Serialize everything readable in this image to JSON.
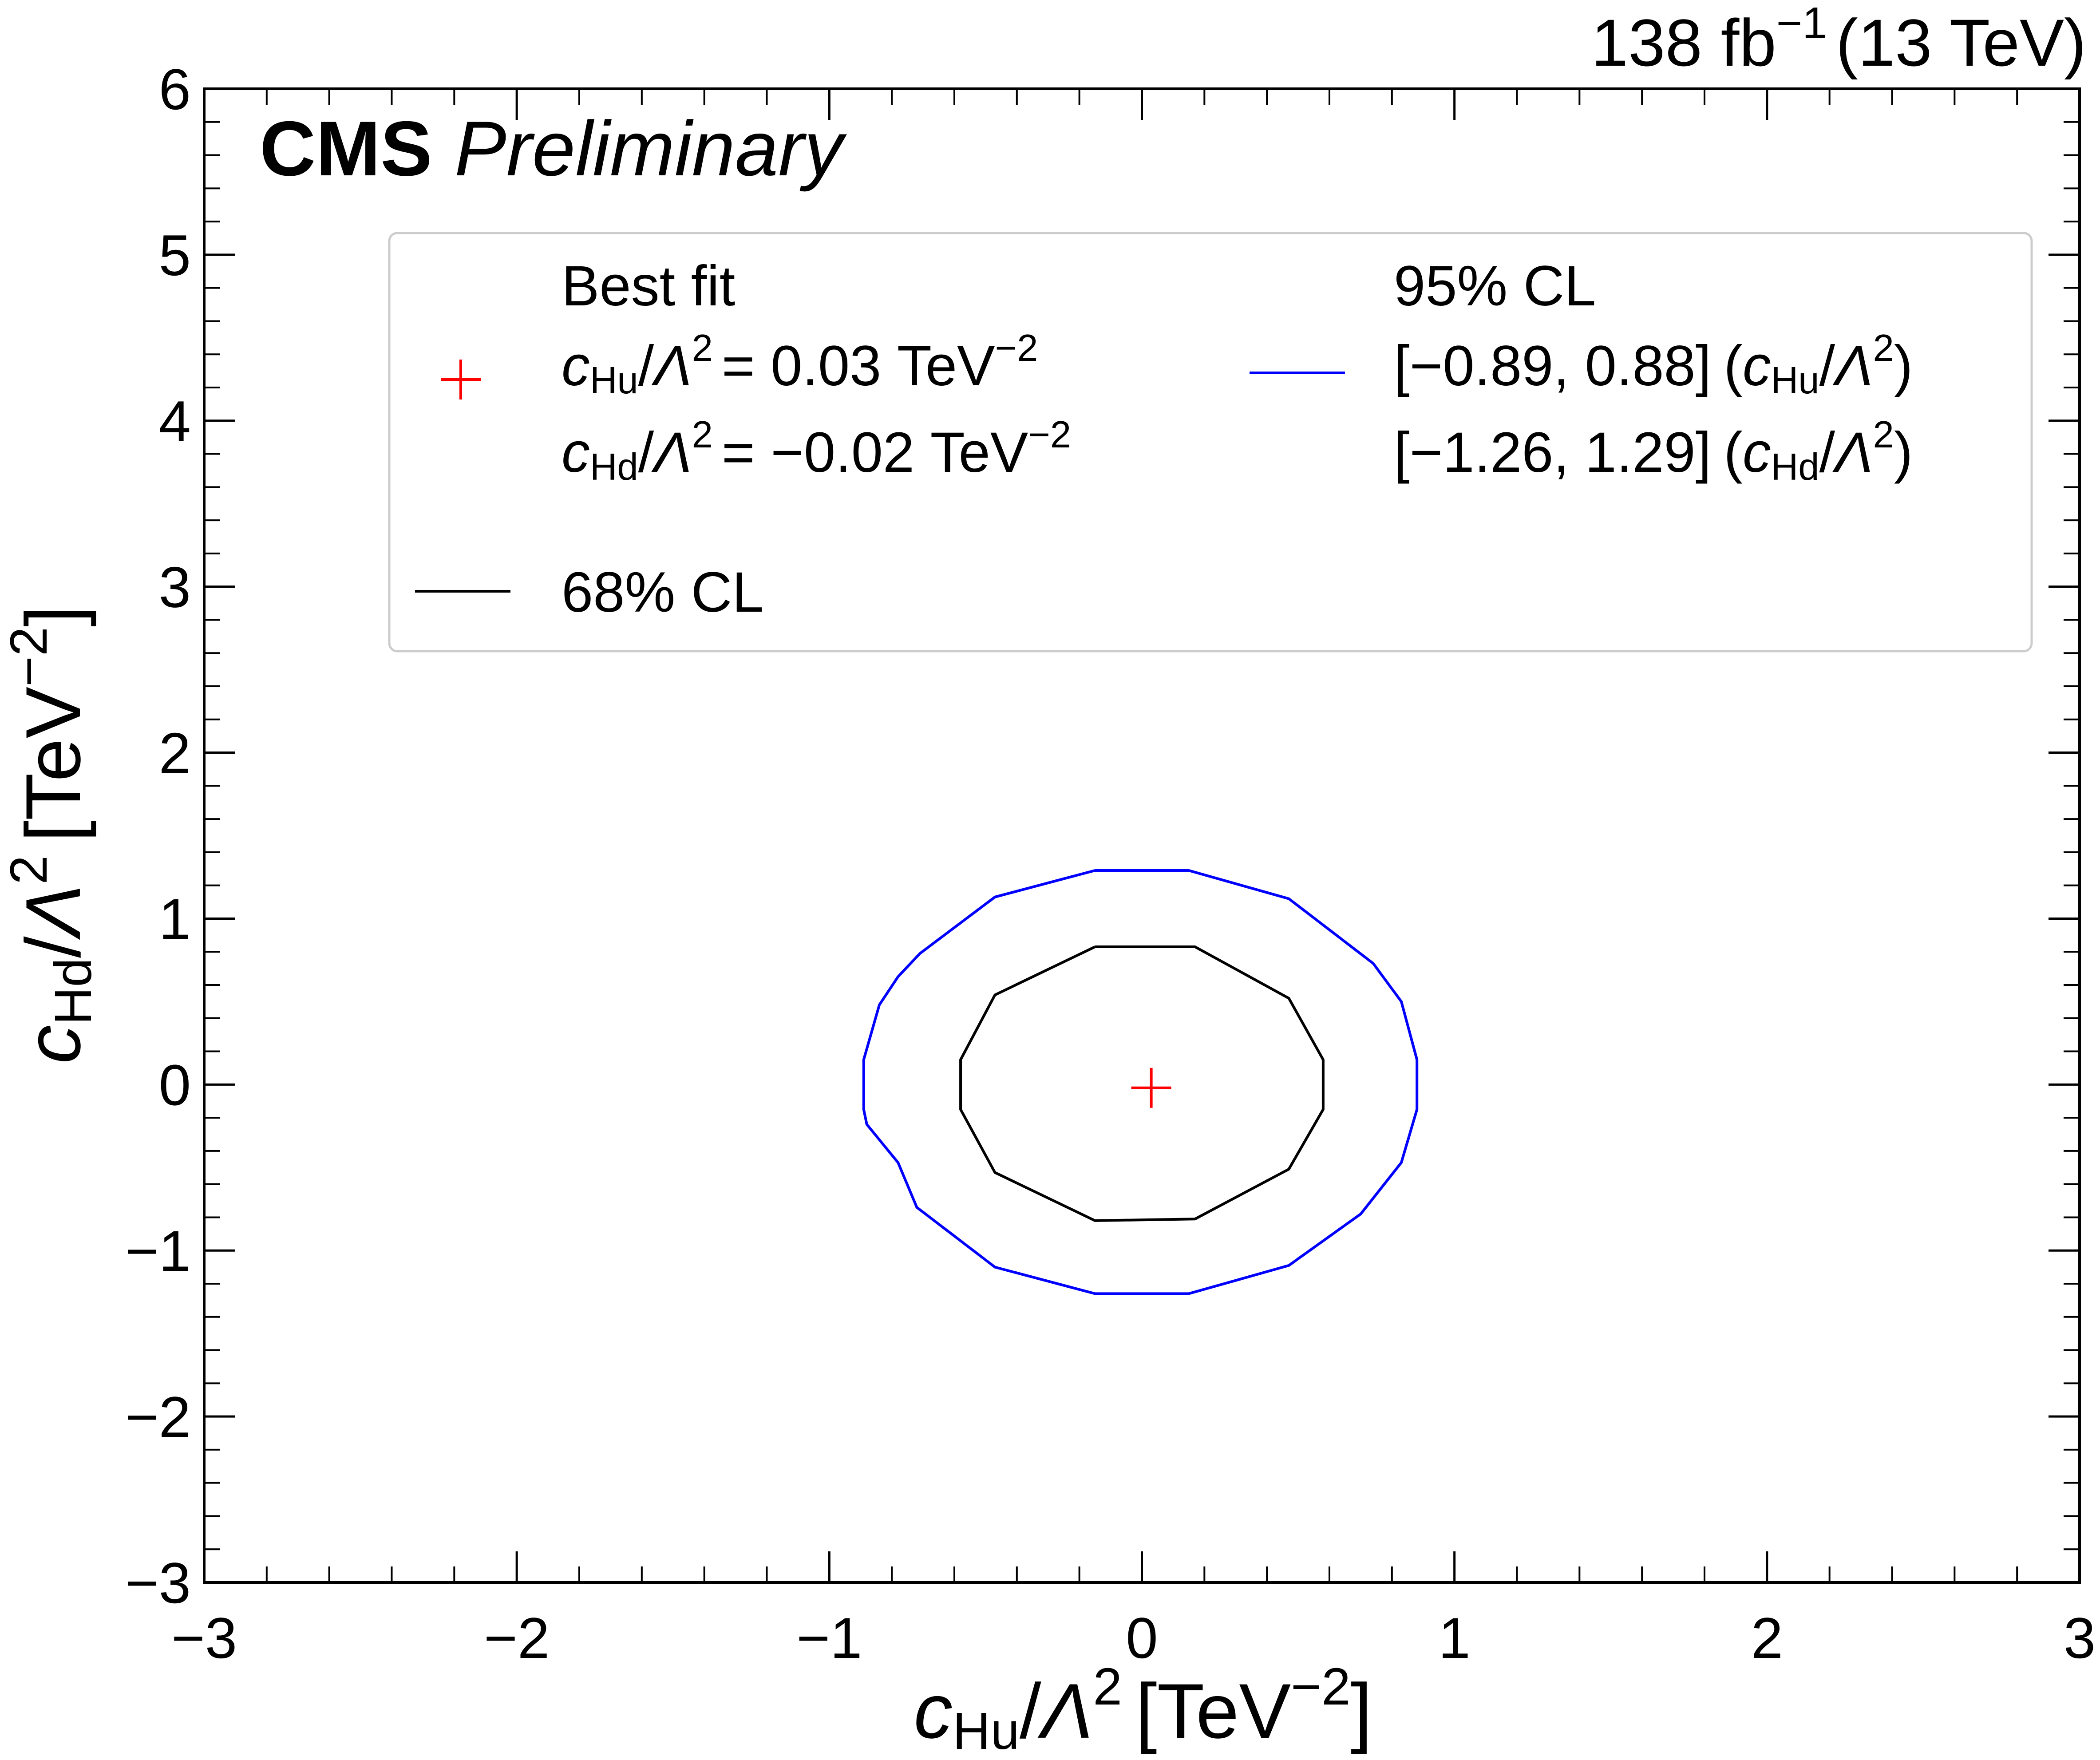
{
  "header": {
    "experiment": "CMS",
    "status": "Preliminary",
    "lumi_value": "138 fb",
    "lumi_exp": "−1",
    "energy": "(13 TeV)"
  },
  "legend": {
    "best_fit_title": "Best fit",
    "best_fit_hu_sym": "c",
    "best_fit_hu_sub": "Hu",
    "best_fit_hu_value": "= 0.03 TeV",
    "best_fit_hd_sym": "c",
    "best_fit_hd_sub": "Hd",
    "best_fit_hd_value": "= −0.02 TeV",
    "exp_neg2": "−2",
    "lambda": "Λ",
    "sq": "2",
    "cl95_title": "95% CL",
    "cl95_hu_interval": "[−0.89, 0.88]",
    "cl95_hd_interval": "[−1.26, 1.29]",
    "cl68_title": "68% CL"
  },
  "axes": {
    "x_sym": "c",
    "x_sub": "Hu",
    "y_sym": "c",
    "y_sub": "Hd",
    "unit_open": "[TeV",
    "unit_exp": "−2",
    "unit_close": "]"
  },
  "colors": {
    "cl95": "#0000ff",
    "cl68": "#000000",
    "best_fit": "#ff0000"
  },
  "chart_data": {
    "type": "contour",
    "xlabel": "c_Hu/Λ² [TeV⁻²]",
    "ylabel": "c_Hd/Λ² [TeV⁻²]",
    "xlim": [
      -3,
      3
    ],
    "ylim": [
      -3,
      6
    ],
    "x_ticks": [
      -3,
      -2,
      -1,
      0,
      1,
      2,
      3
    ],
    "x_tick_labels": [
      "−3",
      "−2",
      "−1",
      "0",
      "1",
      "2",
      "3"
    ],
    "y_ticks": [
      -3,
      -2,
      -1,
      0,
      1,
      2,
      3,
      4,
      5,
      6
    ],
    "y_tick_labels": [
      "−3",
      "−2",
      "−1",
      "0",
      "1",
      "2",
      "3",
      "4",
      "5",
      "6"
    ],
    "best_fit": {
      "x": 0.03,
      "y": -0.02
    },
    "series": [
      {
        "name": "95% CL",
        "color": "#0000ff",
        "points": [
          [
            -0.15,
            1.29
          ],
          [
            0.15,
            1.29
          ],
          [
            0.47,
            1.12
          ],
          [
            0.74,
            0.73
          ],
          [
            0.83,
            0.5
          ],
          [
            0.88,
            0.15
          ],
          [
            0.88,
            -0.15
          ],
          [
            0.83,
            -0.47
          ],
          [
            0.7,
            -0.78
          ],
          [
            0.47,
            -1.09
          ],
          [
            0.15,
            -1.26
          ],
          [
            -0.15,
            -1.26
          ],
          [
            -0.47,
            -1.1
          ],
          [
            -0.72,
            -0.74
          ],
          [
            -0.78,
            -0.47
          ],
          [
            -0.88,
            -0.24
          ],
          [
            -0.89,
            -0.15
          ],
          [
            -0.89,
            0.15
          ],
          [
            -0.84,
            0.48
          ],
          [
            -0.78,
            0.65
          ],
          [
            -0.71,
            0.79
          ],
          [
            -0.47,
            1.13
          ],
          [
            -0.15,
            1.29
          ]
        ]
      },
      {
        "name": "68% CL",
        "color": "#000000",
        "points": [
          [
            -0.15,
            0.83
          ],
          [
            0.17,
            0.83
          ],
          [
            0.47,
            0.52
          ],
          [
            0.58,
            0.15
          ],
          [
            0.58,
            -0.15
          ],
          [
            0.47,
            -0.51
          ],
          [
            0.17,
            -0.81
          ],
          [
            -0.15,
            -0.82
          ],
          [
            -0.47,
            -0.53
          ],
          [
            -0.58,
            -0.15
          ],
          [
            -0.58,
            0.15
          ],
          [
            -0.47,
            0.54
          ],
          [
            -0.15,
            0.83
          ]
        ]
      }
    ]
  }
}
